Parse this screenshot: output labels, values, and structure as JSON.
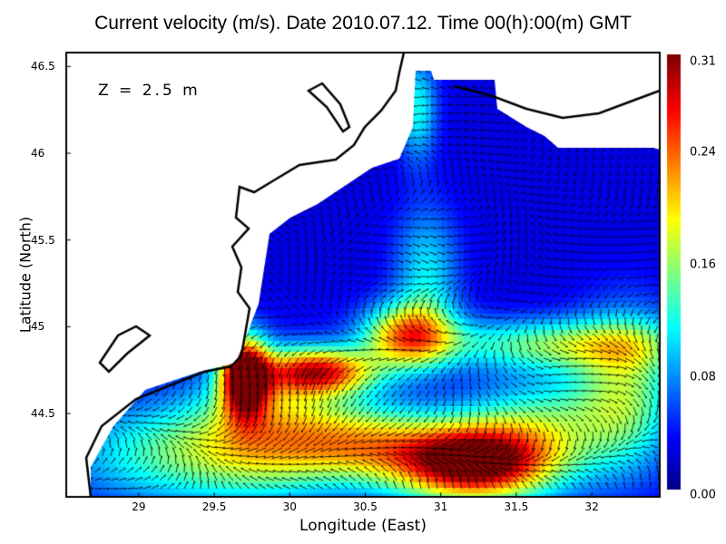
{
  "title": "Current velocity (m/s). Date 2010.07.12. Time 00(h):00(m) GMT",
  "annotation": "Z = 2.5 m",
  "chart_data": {
    "type": "heatmap",
    "title": "Current velocity (m/s). Date 2010.07.12. Time 00(h):00(m) GMT",
    "xlabel": "Longitude (East)",
    "ylabel": "Latitude (North)",
    "xlim": [
      28.52,
      32.45
    ],
    "ylim": [
      44.02,
      46.58
    ],
    "xticks": [
      "29",
      "29.5",
      "30",
      "30.5",
      "31",
      "31.5",
      "32"
    ],
    "yticks": [
      "46.5",
      "46",
      "45.5",
      "45",
      "44.5"
    ],
    "colorbar": {
      "range": [
        0.0,
        0.31
      ],
      "ticks": [
        "0.31",
        "0.24",
        "0.16",
        "0.08",
        "0.00"
      ],
      "colormap": "jet"
    },
    "overlay": "velocity vectors (arrows)",
    "grid": false
  }
}
